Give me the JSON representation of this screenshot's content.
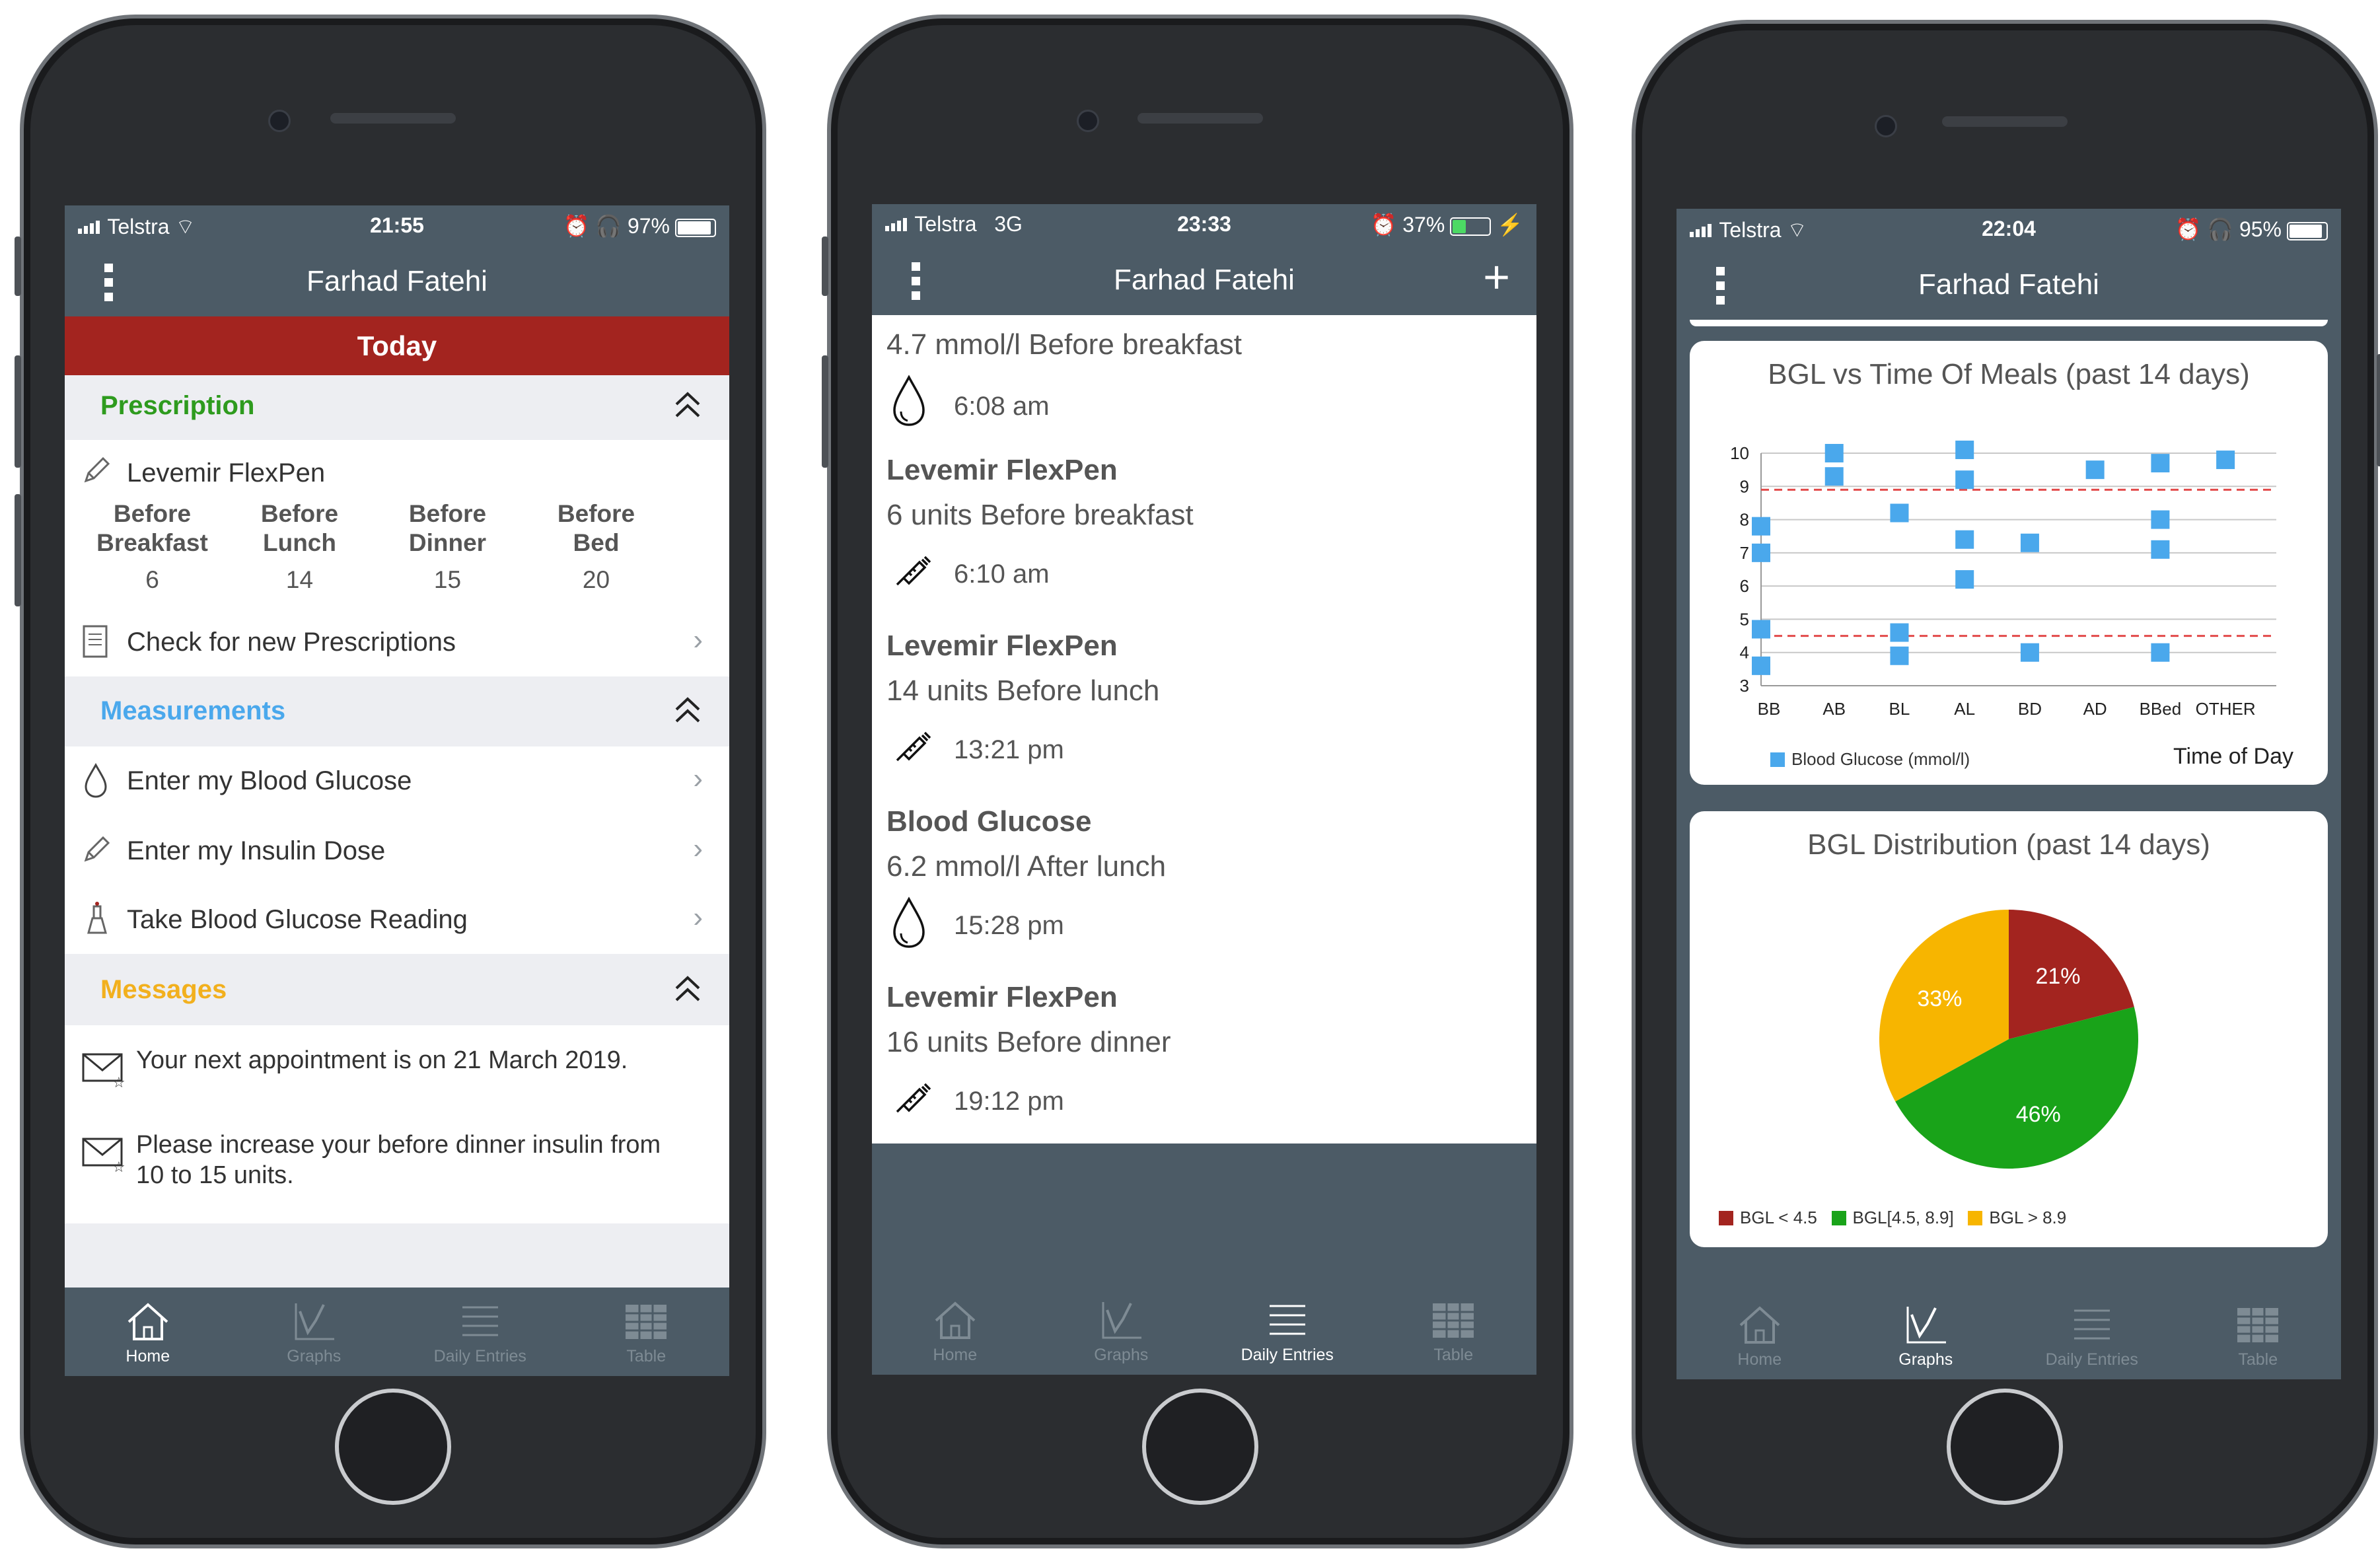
{
  "colors": {
    "navbar": "#4c5b66",
    "today_bar": "#a3241f",
    "prescription": "#2e9b1e",
    "measurements": "#4aa8ec",
    "messages": "#f2b01e",
    "bgl_point": "#4aa8ec",
    "pie_low": "#a3241f",
    "pie_mid": "#19a319",
    "pie_high": "#f7b500"
  },
  "phone1": {
    "status": {
      "carrier": "Telstra",
      "time": "21:55",
      "battery": "97%",
      "battery_level": 0.97
    },
    "title": "Farhad Fatehi",
    "today": "Today",
    "prescription": {
      "header": "Prescription",
      "medicine": "Levemir FlexPen",
      "doses": [
        {
          "label1": "Before",
          "label2": "Breakfast",
          "value": "6"
        },
        {
          "label1": "Before",
          "label2": "Lunch",
          "value": "14"
        },
        {
          "label1": "Before",
          "label2": "Dinner",
          "value": "15"
        },
        {
          "label1": "Before",
          "label2": "Bed",
          "value": "20"
        }
      ],
      "check": "Check for new Prescriptions"
    },
    "measurements": {
      "header": "Measurements",
      "items": [
        "Enter my Blood Glucose",
        "Enter my Insulin Dose",
        "Take Blood Glucose Reading"
      ]
    },
    "messages": {
      "header": "Messages",
      "items": [
        {
          "line1": "Your next appointment is on 21 March 2019.",
          "line2": ""
        },
        {
          "line1": "Please increase your before dinner insulin from",
          "line2": "10 to 15 units."
        }
      ]
    },
    "tabs": [
      "Home",
      "Graphs",
      "Daily Entries",
      "Table"
    ],
    "active_tab": 0
  },
  "phone2": {
    "status": {
      "carrier": "Telstra",
      "network": "3G",
      "time": "23:33",
      "battery": "37%",
      "battery_level": 0.37
    },
    "title": "Farhad Fatehi",
    "entries": [
      {
        "heading": "",
        "line": "4.7 mmol/l Before breakfast",
        "time": "6:08 am",
        "icon": "drop-icon"
      },
      {
        "heading": "Levemir FlexPen",
        "line": "6 units Before breakfast",
        "time": "6:10 am",
        "icon": "syringe-icon"
      },
      {
        "heading": "Levemir FlexPen",
        "line": "14 units Before lunch",
        "time": "13:21 pm",
        "icon": "syringe-icon"
      },
      {
        "heading": "Blood Glucose",
        "line": "6.2 mmol/l After lunch",
        "time": "15:28 pm",
        "icon": "drop-icon"
      },
      {
        "heading": "Levemir FlexPen",
        "line": "16 units Before dinner",
        "time": "19:12 pm",
        "icon": "syringe-icon"
      }
    ],
    "tabs": [
      "Home",
      "Graphs",
      "Daily Entries",
      "Table"
    ],
    "active_tab": 2
  },
  "phone3": {
    "status": {
      "carrier": "Telstra",
      "time": "22:04",
      "battery": "95%",
      "battery_level": 0.95
    },
    "title": "Farhad Fatehi",
    "tabs": [
      "Home",
      "Graphs",
      "Daily Entries",
      "Table"
    ],
    "active_tab": 1
  },
  "chart_data": [
    {
      "type": "scatter",
      "title": "BGL vs Time Of Meals (past 14 days)",
      "xlabel": "Time of Day",
      "categories": [
        "BB",
        "AB",
        "BL",
        "AL",
        "BD",
        "AD",
        "BBed",
        "OTHER"
      ],
      "ylim": [
        3,
        10
      ],
      "yticks": [
        3,
        4,
        5,
        6,
        7,
        8,
        9,
        10
      ],
      "thresholds": [
        4.5,
        8.9
      ],
      "grid": true,
      "legend_position": "bottom-left",
      "series": [
        {
          "name": "Blood Glucose (mmol/l)",
          "points": [
            {
              "x": "BB",
              "y": 7.8
            },
            {
              "x": "BB",
              "y": 7.0
            },
            {
              "x": "BB",
              "y": 4.7
            },
            {
              "x": "BB",
              "y": 3.6
            },
            {
              "x": "AB",
              "y": 10.0
            },
            {
              "x": "AB",
              "y": 9.3
            },
            {
              "x": "BL",
              "y": 8.2
            },
            {
              "x": "BL",
              "y": 4.6
            },
            {
              "x": "BL",
              "y": 3.9
            },
            {
              "x": "AL",
              "y": 10.1
            },
            {
              "x": "AL",
              "y": 9.2
            },
            {
              "x": "AL",
              "y": 7.4
            },
            {
              "x": "AL",
              "y": 6.2
            },
            {
              "x": "BD",
              "y": 7.3
            },
            {
              "x": "BD",
              "y": 4.0
            },
            {
              "x": "AD",
              "y": 9.5
            },
            {
              "x": "BBed",
              "y": 9.7
            },
            {
              "x": "BBed",
              "y": 8.0
            },
            {
              "x": "BBed",
              "y": 7.1
            },
            {
              "x": "BBed",
              "y": 4.0
            },
            {
              "x": "OTHER",
              "y": 9.8
            }
          ]
        }
      ]
    },
    {
      "type": "pie",
      "title": "BGL Distribution (past 14 days)",
      "legend_position": "bottom-left",
      "slices": [
        {
          "name": "BGL < 4.5",
          "value": 21,
          "label": "21%",
          "color": "#a3241f"
        },
        {
          "name": "BGL[4.5, 8.9]",
          "value": 46,
          "label": "46%",
          "color": "#19a319"
        },
        {
          "name": "BGL > 8.9",
          "value": 33,
          "label": "33%",
          "color": "#f7b500"
        }
      ]
    }
  ]
}
